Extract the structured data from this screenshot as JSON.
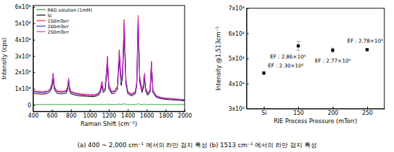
{
  "chart_data": [
    {
      "type": "line",
      "x": [
        400,
        450,
        500,
        550,
        580,
        600,
        612,
        625,
        650,
        700,
        750,
        765,
        775,
        785,
        800,
        850,
        900,
        950,
        1000,
        1050,
        1090,
        1110,
        1127,
        1140,
        1160,
        1175,
        1185,
        1200,
        1230,
        1260,
        1290,
        1311,
        1330,
        1345,
        1362,
        1380,
        1400,
        1440,
        1480,
        1495,
        1509,
        1525,
        1550,
        1565,
        1575,
        1590,
        1610,
        1635,
        1650,
        1665,
        1700,
        1750,
        1800,
        1850,
        1900,
        1950,
        2000
      ],
      "xlim": [
        400,
        2000
      ],
      "xticks": [
        400,
        600,
        800,
        1000,
        1200,
        1400,
        1600,
        1800,
        2000
      ],
      "ylim": [
        -4000,
        61000
      ],
      "yticks": [
        0,
        {
          "value": 10000,
          "label": "1x10⁴"
        },
        {
          "value": 20000,
          "label": "2x10⁴"
        },
        {
          "value": 30000,
          "label": "3x10⁴"
        },
        {
          "value": 40000,
          "label": "4x10⁴"
        },
        {
          "value": 50000,
          "label": "5x10⁴"
        },
        {
          "value": 60000,
          "label": "6x10⁴"
        }
      ],
      "x_label": "Raman Shift (cm⁻¹)",
      "y_label": "Intensity (cps)",
      "legend": "upper left",
      "grid": false,
      "series": [
        {
          "name": "R6G solution (1mM)",
          "color": "#2ca02c",
          "values": [
            200,
            200,
            200,
            200,
            200,
            250,
            400,
            250,
            200,
            200,
            200,
            250,
            350,
            250,
            200,
            200,
            200,
            200,
            200,
            200,
            200,
            250,
            350,
            250,
            250,
            400,
            500,
            250,
            200,
            200,
            250,
            550,
            300,
            400,
            800,
            300,
            200,
            200,
            200,
            300,
            900,
            350,
            200,
            250,
            400,
            250,
            200,
            200,
            500,
            200,
            200,
            200,
            200,
            200,
            200,
            200,
            200
          ]
        },
        {
          "name": "Si",
          "color": "#000000",
          "values": [
            7200,
            6800,
            6600,
            7000,
            8100,
            11000,
            16000,
            9400,
            7200,
            6800,
            7200,
            9400,
            13500,
            8900,
            6800,
            5900,
            5500,
            5300,
            5100,
            5100,
            5900,
            7600,
            11800,
            7600,
            8500,
            16800,
            24300,
            10200,
            6800,
            7200,
            9400,
            27700,
            11900,
            16800,
            42500,
            12700,
            6800,
            5500,
            6800,
            11900,
            44500,
            14400,
            7600,
            10200,
            16000,
            8500,
            5900,
            7600,
            21800,
            7600,
            4700,
            3800,
            3400,
            3200,
            3000,
            2800,
            2500
          ]
        },
        {
          "name": "150mTorr",
          "color": "#e8262b",
          "values": [
            8800,
            8300,
            8100,
            8500,
            9800,
            13500,
            19500,
            11400,
            8800,
            8300,
            8800,
            11400,
            16500,
            10900,
            8300,
            7300,
            6800,
            6500,
            6300,
            6300,
            7300,
            9300,
            14500,
            9300,
            10400,
            20600,
            30000,
            12400,
            8300,
            8800,
            11400,
            34000,
            14500,
            20600,
            52500,
            15500,
            8300,
            6800,
            8300,
            14500,
            55000,
            17500,
            9300,
            12400,
            19600,
            10400,
            7300,
            9300,
            26800,
            9300,
            5700,
            4700,
            4200,
            4000,
            3700,
            3500,
            3200
          ]
        },
        {
          "name": "200mTorr",
          "color": "#2b2bd6",
          "values": [
            8200,
            7700,
            7500,
            7900,
            9200,
            12600,
            18500,
            10700,
            8200,
            7700,
            8200,
            10700,
            15600,
            10200,
            7700,
            6700,
            6200,
            5900,
            5700,
            5700,
            6700,
            8700,
            13600,
            8700,
            9700,
            19500,
            28300,
            11700,
            7700,
            8200,
            10700,
            32200,
            13600,
            19500,
            50000,
            14600,
            7700,
            6200,
            7700,
            13600,
            53000,
            16600,
            8700,
            11700,
            18500,
            9700,
            6700,
            8700,
            25300,
            8700,
            5300,
            4300,
            3800,
            3600,
            3300,
            3100,
            2800
          ]
        },
        {
          "name": "250mTorr",
          "color": "#d62ad6",
          "values": [
            8500,
            8000,
            7800,
            8200,
            9500,
            13000,
            19000,
            11000,
            8500,
            8000,
            8500,
            11000,
            16000,
            10500,
            8000,
            7000,
            6500,
            6200,
            6000,
            6000,
            7000,
            9000,
            14000,
            9000,
            10000,
            20000,
            29000,
            12000,
            8000,
            8500,
            11000,
            33000,
            14000,
            20000,
            51000,
            15000,
            8000,
            6500,
            8000,
            14000,
            53500,
            17000,
            9000,
            12000,
            19000,
            10000,
            7000,
            9000,
            26000,
            9000,
            5500,
            4500,
            4000,
            3800,
            3500,
            3300,
            3000
          ]
        }
      ]
    },
    {
      "type": "scatter",
      "categories": [
        "Si",
        "150",
        "200",
        "250"
      ],
      "values": [
        44200,
        55000,
        53300,
        53500
      ],
      "errors": [
        500,
        1800,
        800,
        300
      ],
      "annotations": [
        "EF : 2.30×10⁶",
        "EF : 2.86×10⁶",
        "EF : 2.77×10⁶",
        "EF : 2.78×10⁶"
      ],
      "color": "#000000",
      "marker": "square",
      "ylim": [
        30000,
        70000
      ],
      "yticks": [
        {
          "value": 30000,
          "label": "3x10⁴"
        },
        {
          "value": 40000,
          "label": "4x10⁴"
        },
        {
          "value": 50000,
          "label": "5x10⁴"
        },
        {
          "value": 60000,
          "label": "6x10⁴"
        },
        {
          "value": 70000,
          "label": "7x10⁴"
        }
      ],
      "x_label": "RIE Process Pressure (mTorr)",
      "y_label": "Intensity @1,513cm⁻¹",
      "grid": false
    }
  ],
  "caption": "(a) 400 ~ 2,000 cm⁻¹ 에서의 라만 검지 특성 (b) 1513 cm⁻¹ 에서의 라만 검지 특성"
}
